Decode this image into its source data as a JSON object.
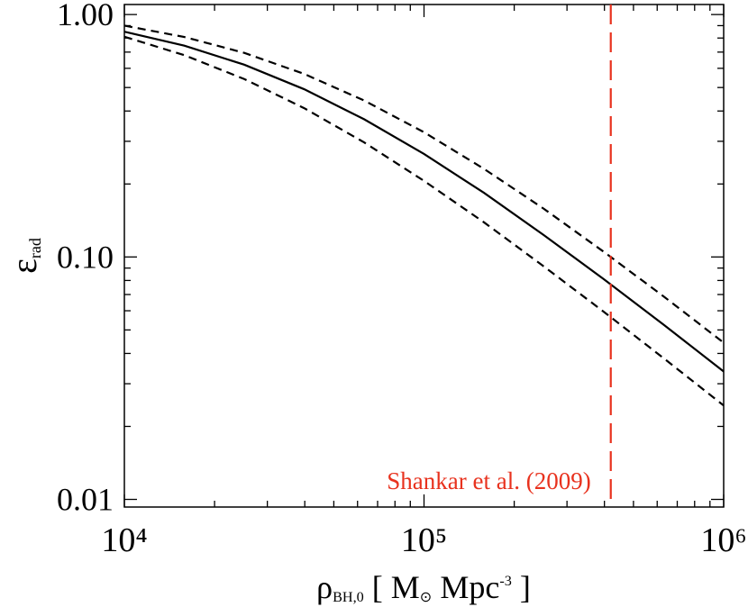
{
  "chart_data": {
    "type": "line",
    "xscale": "log",
    "yscale": "log",
    "x": [
      10000,
      15849,
      25119,
      39811,
      63096,
      100000,
      158489,
      251189,
      398107,
      630957,
      1000000
    ],
    "series": [
      {
        "color": "#000000",
        "dash": "solid",
        "values": [
          0.85,
          0.744,
          0.621,
          0.492,
          0.37,
          0.266,
          0.184,
          0.123,
          0.081,
          0.0525,
          0.0337
        ]
      },
      {
        "color": "#000000",
        "dash": "dashed",
        "values": [
          0.9,
          0.808,
          0.695,
          0.569,
          0.442,
          0.327,
          0.231,
          0.158,
          0.105,
          0.0687,
          0.0443
        ]
      },
      {
        "color": "#000000",
        "dash": "dashed",
        "values": [
          0.81,
          0.68,
          0.542,
          0.411,
          0.297,
          0.206,
          0.139,
          0.0914,
          0.0594,
          0.0382,
          0.0244
        ]
      }
    ],
    "vline": {
      "x": 420000,
      "color": "#e8321e",
      "label": "Shankar et al. (2009)"
    },
    "xlim": [
      10000,
      1000000
    ],
    "ylim": [
      0.0093,
      1.1
    ],
    "xticks": [
      {
        "value": 10000,
        "label": "10⁴"
      },
      {
        "value": 100000,
        "label": "10⁵"
      },
      {
        "value": 1000000,
        "label": "10⁶"
      }
    ],
    "yticks": [
      {
        "value": 0.01,
        "label": "0.01"
      },
      {
        "value": 0.1,
        "label": "0.10"
      },
      {
        "value": 1,
        "label": "1.00"
      }
    ],
    "xminorticks": [
      20000,
      30000,
      40000,
      50000,
      60000,
      70000,
      80000,
      90000,
      200000,
      300000,
      400000,
      500000,
      600000,
      700000,
      800000,
      900000
    ],
    "yminorticks": [
      0.02,
      0.03,
      0.04,
      0.05,
      0.06,
      0.07,
      0.08,
      0.09,
      0.2,
      0.3,
      0.4,
      0.5,
      0.6,
      0.7,
      0.8,
      0.9
    ],
    "xlabel": [
      {
        "text": "ρ"
      },
      {
        "text": "BH,0",
        "shift": "sub"
      },
      {
        "text": "  [ M"
      },
      {
        "text": "⊙",
        "shift": "sub"
      },
      {
        "text": " Mpc"
      },
      {
        "text": "-3",
        "shift": "sup"
      },
      {
        "text": " ]"
      }
    ],
    "ylabel": [
      {
        "text": "ε"
      },
      {
        "text": "rad",
        "shift": "sub"
      }
    ]
  }
}
